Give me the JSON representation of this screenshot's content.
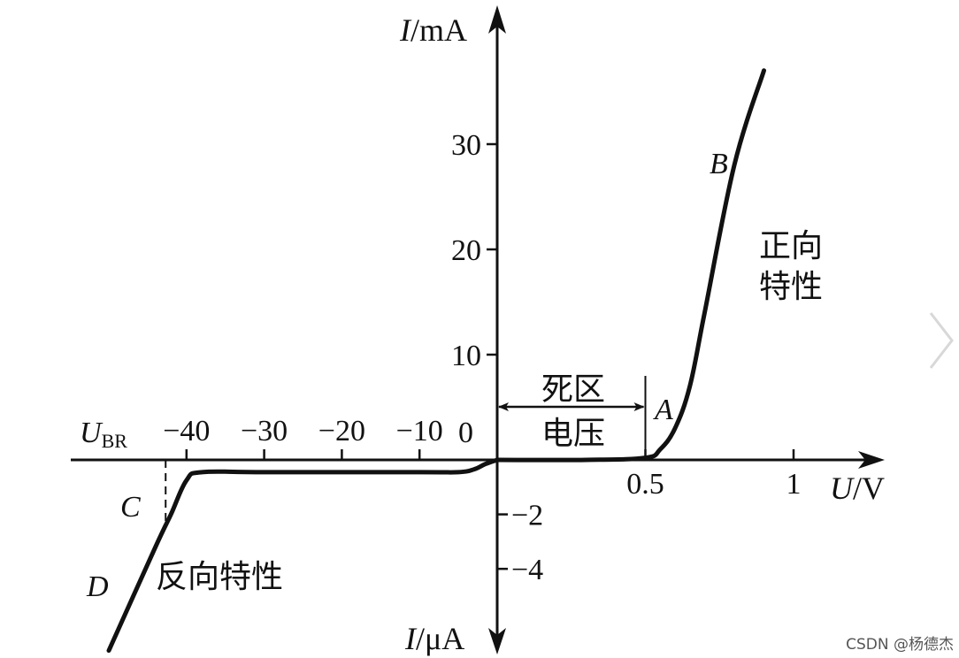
{
  "chart_data": {
    "type": "line",
    "title": "",
    "xlabel": "U/V",
    "ylabel_positive": "I/mA",
    "ylabel_negative": "I/μA",
    "x_label_parts": {
      "var": "U",
      "unit": "/V"
    },
    "y_pos_label_parts": {
      "var": "I",
      "unit": "/mA"
    },
    "y_neg_label_parts": {
      "var": "I",
      "unit": "/μA"
    },
    "x_ticks_forward": [
      {
        "value": 0.5,
        "label": "0.5"
      },
      {
        "value": 1,
        "label": "1"
      }
    ],
    "x_ticks_reverse": [
      {
        "value": -10,
        "label": "−10"
      },
      {
        "value": -20,
        "label": "−20"
      },
      {
        "value": -30,
        "label": "−30"
      },
      {
        "value": -40,
        "label": "−40"
      }
    ],
    "origin_label": "0",
    "y_ticks_forward": [
      {
        "value": 10,
        "label": "10"
      },
      {
        "value": 20,
        "label": "20"
      },
      {
        "value": 30,
        "label": "30"
      }
    ],
    "y_ticks_reverse": [
      {
        "value": -2,
        "label": "−2"
      },
      {
        "value": -4,
        "label": "−4"
      }
    ],
    "breakdown_voltage_label": {
      "main": "U",
      "sub": "BR"
    },
    "breakdown_voltage": -42,
    "series": [
      {
        "region": "forward",
        "unit_x": "V",
        "unit_y": "mA",
        "points": [
          {
            "x": 0,
            "y": 0
          },
          {
            "x": 0.3,
            "y": 0
          },
          {
            "x": 0.5,
            "y": 0.2
          },
          {
            "x": 0.55,
            "y": 1
          },
          {
            "x": 0.6,
            "y": 3
          },
          {
            "x": 0.65,
            "y": 7
          },
          {
            "x": 0.7,
            "y": 14
          },
          {
            "x": 0.8,
            "y": 28
          },
          {
            "x": 0.9,
            "y": 37
          }
        ]
      },
      {
        "region": "reverse",
        "unit_x": "V",
        "unit_y": "μA",
        "points": [
          {
            "x": -50,
            "y": -7
          },
          {
            "x": -44,
            "y": -3.2
          },
          {
            "x": -42,
            "y": -2
          },
          {
            "x": -40,
            "y": -0.75
          },
          {
            "x": -38,
            "y": -0.45
          },
          {
            "x": -30,
            "y": -0.45
          },
          {
            "x": -10,
            "y": -0.45
          },
          {
            "x": -5,
            "y": -0.45
          },
          {
            "x": -3,
            "y": -0.35
          },
          {
            "x": -1.5,
            "y": -0.15
          },
          {
            "x": 0,
            "y": 0
          }
        ]
      }
    ],
    "annotations": {
      "point_A": "A",
      "point_B": "B",
      "point_C": "C",
      "point_D": "D",
      "dead_zone_line1": "死区",
      "dead_zone_line2": "电压",
      "forward_line1": "正向",
      "forward_line2": "特性",
      "reverse_text": "反向特性"
    },
    "dead_zone_range": [
      0,
      0.5
    ]
  },
  "watermark": "CSDN @杨德杰",
  "nav": {
    "icon": "chevron-right-icon",
    "color": "#d8d8d8"
  },
  "colors": {
    "ink": "#111111"
  }
}
